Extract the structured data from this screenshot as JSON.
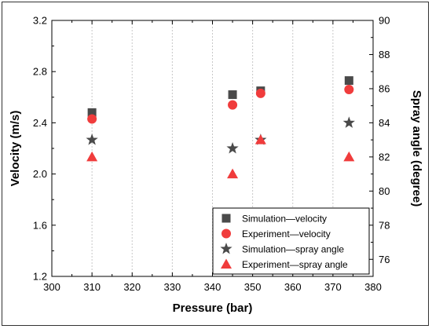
{
  "chart_data": {
    "type": "scatter",
    "title": "",
    "xlabel": "Pressure (bar)",
    "ylabel_left": "Velocity (m/s)",
    "ylabel_right": "Spray angle (degree)",
    "xlim": [
      300,
      380
    ],
    "ylim_left": [
      1.2,
      3.2
    ],
    "ylim_right": [
      75,
      90
    ],
    "x_ticks": [
      "300",
      "310",
      "320",
      "330",
      "340",
      "350",
      "360",
      "370",
      "380"
    ],
    "y_left_ticks": [
      "1.2",
      "1.6",
      "2.0",
      "2.4",
      "2.8",
      "3.2"
    ],
    "y_right_ticks": [
      "76",
      "78",
      "80",
      "82",
      "84",
      "86",
      "88",
      "90"
    ],
    "grid": "vertical dotted",
    "legend_position": "bottom-right",
    "series": [
      {
        "name": "Simulation—velocity",
        "axis": "left",
        "marker": "square",
        "color": "#4a4a4a",
        "points": [
          [
            310,
            2.48
          ],
          [
            345,
            2.62
          ],
          [
            352,
            2.65
          ],
          [
            374,
            2.73
          ]
        ]
      },
      {
        "name": "Experiment—velocity",
        "axis": "left",
        "marker": "circle",
        "color": "#f03c3c",
        "points": [
          [
            310,
            2.43
          ],
          [
            345,
            2.54
          ],
          [
            352,
            2.63
          ],
          [
            374,
            2.66
          ]
        ]
      },
      {
        "name": "Simulation—spray angle",
        "axis": "right",
        "marker": "star",
        "color": "#4a4a4a",
        "points": [
          [
            310,
            83.0
          ],
          [
            345,
            82.5
          ],
          [
            352,
            83.0
          ],
          [
            374,
            84.0
          ]
        ]
      },
      {
        "name": "Experiment—spray angle",
        "axis": "right",
        "marker": "triangle",
        "color": "#f03c3c",
        "points": [
          [
            310,
            82.0
          ],
          [
            345,
            81.0
          ],
          [
            352,
            83.0
          ],
          [
            374,
            82.0
          ]
        ]
      }
    ]
  }
}
